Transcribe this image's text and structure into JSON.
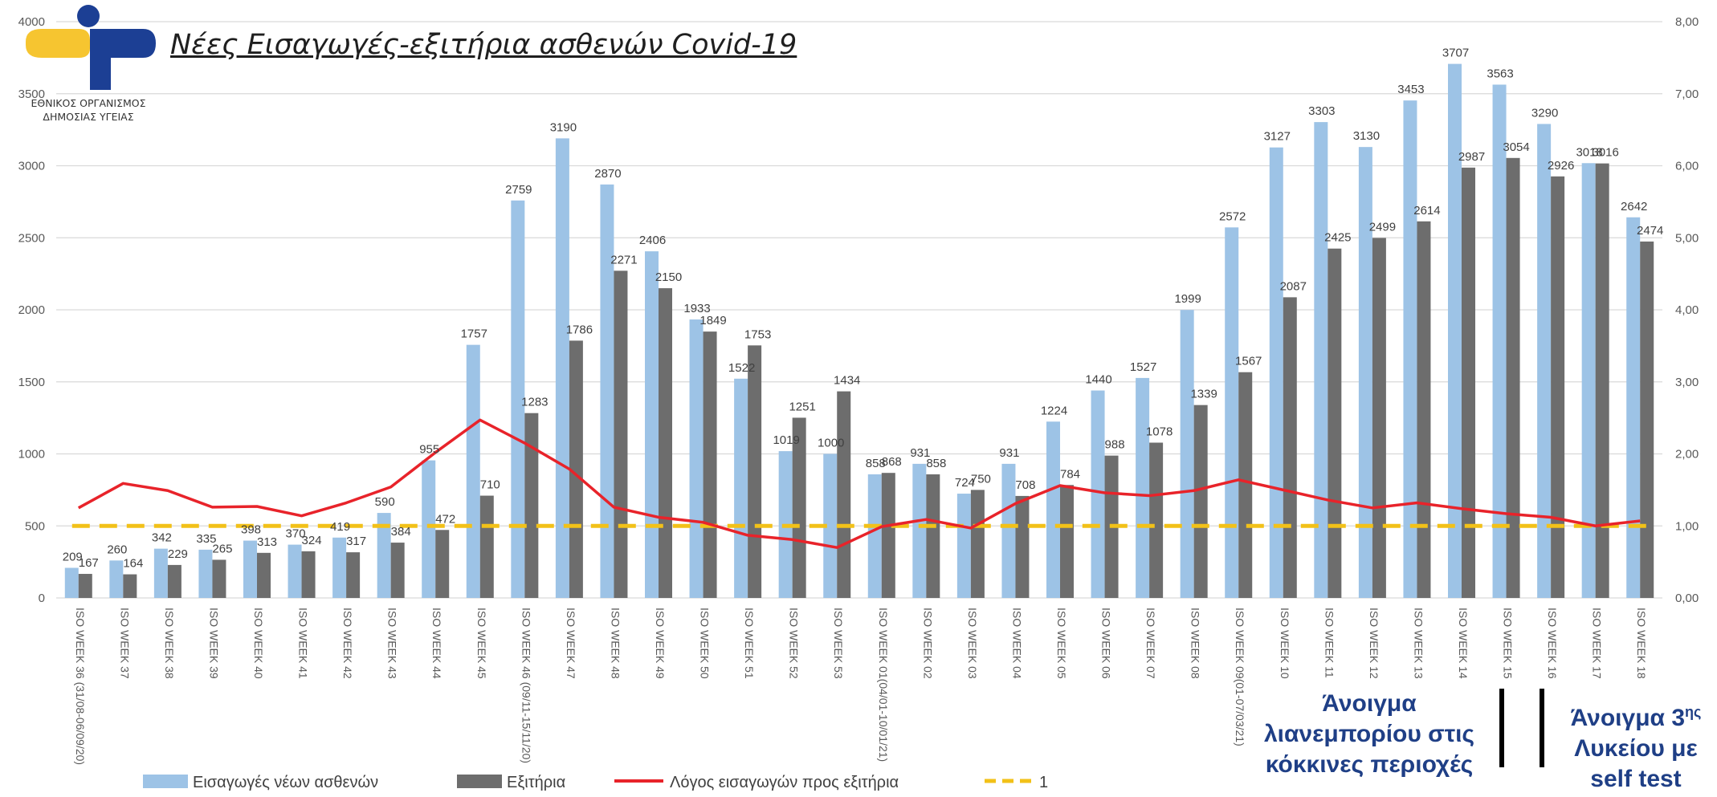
{
  "logo": {
    "org_line1": "ΕΘΝΙΚΟΣ ΟΡΓΑΝΙΣΜΟΣ",
    "org_line2": "ΔΗΜΟΣΙΑΣ ΥΓΕΙΑΣ",
    "colors": {
      "blue": "#1c3f94",
      "yellow": "#f6c530"
    }
  },
  "annotations": {
    "note1_line1": "Άνοιγμα",
    "note1_line2": "λιανεμπορίου στις",
    "note1_line3": "κόκκινες περιοχές",
    "note2_line1": "Άνοιγμα 3",
    "note2_sup": "ης",
    "note2_line2": "Λυκείου με",
    "note2_line3": "self test"
  },
  "colors": {
    "admissions": "#9dc3e6",
    "discharges": "#6d6d6d",
    "ratio": "#e8232a",
    "reference": "#f2c118",
    "grid": "#d9d9d9",
    "axis_text": "#595959"
  },
  "chart_data": {
    "type": "bar",
    "title": "Νέες Εισαγωγές-εξιτήρια ασθενών Covid-19",
    "categories": [
      "ISO WEEK 36 (31/08-06/09/20)",
      "ISO WEEK 37",
      "ISO WEEK 38",
      "ISO WEEK 39",
      "ISO WEEK 40",
      "ISO WEEK 41",
      "ISO WEEK 42",
      "ISO WEEK 43",
      "ISO WEEK 44",
      "ISO WEEK 45",
      "ISO WEEK 46 (09/11-15/11/20)",
      "ISO WEEK 47",
      "ISO WEEK 48",
      "ISO WEEK 49",
      "ISO WEEK 50",
      "ISO WEEK 51",
      "ISO WEEK 52",
      "ISO WEEK 53",
      "ISO WEEK 01(04/01-10/01/21)",
      "ISO WEEK 02",
      "ISO WEEK 03",
      "ISO WEEK 04",
      "ISO WEEK 05",
      "ISO WEEK 06",
      "ISO WEEK 07",
      "ISO WEEK 08",
      "ISO WEEK 09(01-07/03/21)",
      "ISO WEEK 10",
      "ISO WEEK 11",
      "ISO WEEK 12",
      "ISO WEEK 13",
      "ISO WEEK 14",
      "ISO WEEK 15",
      "ISO WEEK 16",
      "ISO WEEK 17",
      "ISO WEEK 18"
    ],
    "series": [
      {
        "name": "Εισαγωγές νέων ασθενών",
        "kind": "bar",
        "axis": "left",
        "values": [
          209,
          260,
          342,
          335,
          398,
          370,
          419,
          590,
          955,
          1757,
          2759,
          3190,
          2870,
          2406,
          1933,
          1522,
          1019,
          1000,
          858,
          931,
          724,
          931,
          1224,
          1440,
          1527,
          1999,
          2572,
          3127,
          3303,
          3130,
          3453,
          3707,
          3563,
          3290,
          3018,
          2642
        ]
      },
      {
        "name": "Εξιτήρια",
        "kind": "bar",
        "axis": "left",
        "values": [
          167,
          164,
          229,
          265,
          313,
          324,
          317,
          384,
          472,
          710,
          1283,
          1786,
          2271,
          2150,
          1849,
          1753,
          1251,
          1434,
          868,
          858,
          750,
          708,
          784,
          988,
          1078,
          1339,
          1567,
          2087,
          2425,
          2499,
          2614,
          2987,
          3054,
          2926,
          3016,
          2474
        ]
      },
      {
        "name": "Λόγος εισαγωγών προς εξιτήρια",
        "kind": "line",
        "axis": "right",
        "values": [
          1.25,
          1.59,
          1.49,
          1.26,
          1.27,
          1.14,
          1.32,
          1.54,
          2.02,
          2.47,
          2.15,
          1.79,
          1.26,
          1.12,
          1.05,
          0.87,
          0.81,
          0.7,
          0.99,
          1.09,
          0.97,
          1.31,
          1.56,
          1.46,
          1.42,
          1.49,
          1.64,
          1.5,
          1.36,
          1.25,
          1.32,
          1.24,
          1.17,
          1.12,
          1.0,
          1.07
        ]
      },
      {
        "name": "1",
        "kind": "reference",
        "axis": "right",
        "value": 1.0
      }
    ],
    "ylim": [
      0,
      4000
    ],
    "yticks": [
      "0",
      "500",
      "1000",
      "1500",
      "2000",
      "2500",
      "3000",
      "3500",
      "4000"
    ],
    "y2lim": [
      0,
      8
    ],
    "y2ticks": [
      "0,00",
      "1,00",
      "2,00",
      "3,00",
      "4,00",
      "5,00",
      "6,00",
      "7,00",
      "8,00"
    ],
    "grid": true,
    "legend_position": "bottom"
  }
}
